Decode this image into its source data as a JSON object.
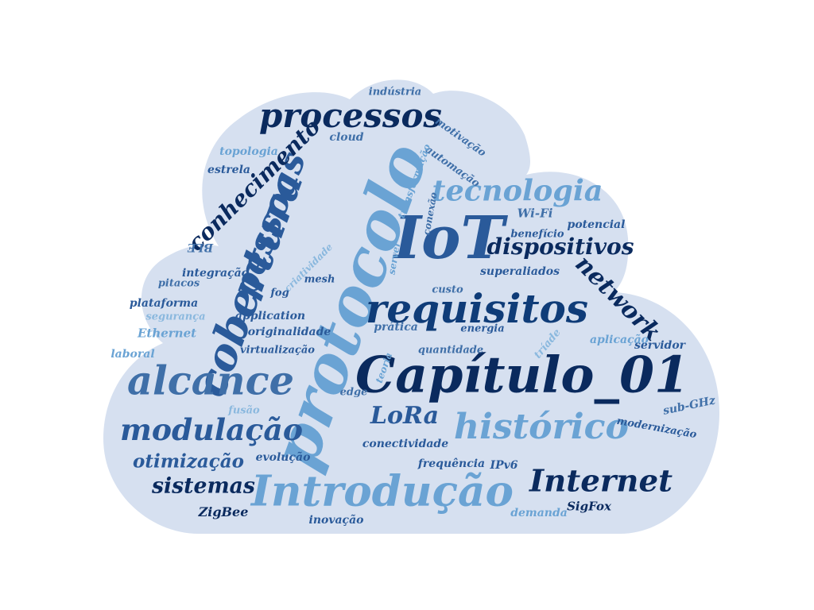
{
  "cloud_fill": "#d6e0f0",
  "palette": {
    "navy": "#0a2a5e",
    "dark": "#0f3c78",
    "mid": "#2a5a9a",
    "steel": "#3f6fa8",
    "light": "#6aa3d4",
    "pale": "#8ab8de"
  },
  "words": [
    {
      "text": "Capítulo_01",
      "color": "navy"
    },
    {
      "text": "protocolo",
      "color": "light"
    },
    {
      "text": "Introdução",
      "color": "light"
    },
    {
      "text": "histórico",
      "color": "light"
    },
    {
      "text": "requisitos",
      "color": "dark"
    },
    {
      "text": "IoT",
      "color": "mid"
    },
    {
      "text": "cobertura",
      "color": "mid"
    },
    {
      "text": "alcance",
      "color": "steel"
    },
    {
      "text": "modulação",
      "color": "mid"
    },
    {
      "text": "Internet",
      "color": "navy"
    },
    {
      "text": "processos",
      "color": "navy"
    },
    {
      "text": "pessoas",
      "color": "mid"
    },
    {
      "text": "tecnologia",
      "color": "light"
    },
    {
      "text": "conhecimento",
      "color": "navy"
    },
    {
      "text": "dispositivos",
      "color": "navy"
    },
    {
      "text": "network",
      "color": "navy"
    },
    {
      "text": "otimização",
      "color": "mid"
    },
    {
      "text": "sistemas",
      "color": "navy"
    },
    {
      "text": "LoRa",
      "color": "mid"
    },
    {
      "text": "indústria",
      "color": "steel"
    },
    {
      "text": "motivação",
      "color": "steel"
    },
    {
      "text": "automação",
      "color": "steel"
    },
    {
      "text": "cloud",
      "color": "steel"
    },
    {
      "text": "topologia",
      "color": "light"
    },
    {
      "text": "estrela",
      "color": "mid"
    },
    {
      "text": "transformação",
      "color": "light"
    },
    {
      "text": "conexão",
      "color": "steel"
    },
    {
      "text": "Wi-Fi",
      "color": "steel"
    },
    {
      "text": "potencial",
      "color": "mid"
    },
    {
      "text": "benefício",
      "color": "mid"
    },
    {
      "text": "BLE",
      "color": "steel"
    },
    {
      "text": "servidor",
      "color": "mid"
    },
    {
      "text": "integração",
      "color": "mid"
    },
    {
      "text": "criatividade",
      "color": "pale"
    },
    {
      "text": "mesh",
      "color": "mid"
    },
    {
      "text": "pitacos",
      "color": "steel"
    },
    {
      "text": "superaliados",
      "color": "mid"
    },
    {
      "text": "custo",
      "color": "steel"
    },
    {
      "text": "fog",
      "color": "mid"
    },
    {
      "text": "plataforma",
      "color": "mid"
    },
    {
      "text": "application",
      "color": "mid"
    },
    {
      "text": "segurança",
      "color": "pale"
    },
    {
      "text": "originalidade",
      "color": "mid"
    },
    {
      "text": "prática",
      "color": "steel"
    },
    {
      "text": "energia",
      "color": "mid"
    },
    {
      "text": "tríade",
      "color": "pale"
    },
    {
      "text": "aplicação",
      "color": "light"
    },
    {
      "text": "Ethernet",
      "color": "light"
    },
    {
      "text": "virtualização",
      "color": "mid"
    },
    {
      "text": "quantidade",
      "color": "steel"
    },
    {
      "text": "laboral",
      "color": "light"
    },
    {
      "text": "teoria",
      "color": "light"
    },
    {
      "text": "edge",
      "color": "steel"
    },
    {
      "text": "fusão",
      "color": "pale"
    },
    {
      "text": "sub-GHz",
      "color": "steel"
    },
    {
      "text": "modernização",
      "color": "mid"
    },
    {
      "text": "conectividade",
      "color": "mid"
    },
    {
      "text": "evolução",
      "color": "mid"
    },
    {
      "text": "frequência",
      "color": "mid"
    },
    {
      "text": "IPv6",
      "color": "mid"
    },
    {
      "text": "ZigBee",
      "color": "navy"
    },
    {
      "text": "inovação",
      "color": "mid"
    },
    {
      "text": "demanda",
      "color": "light"
    },
    {
      "text": "SigFox",
      "color": "navy"
    },
    {
      "text": "server",
      "color": "light"
    }
  ]
}
